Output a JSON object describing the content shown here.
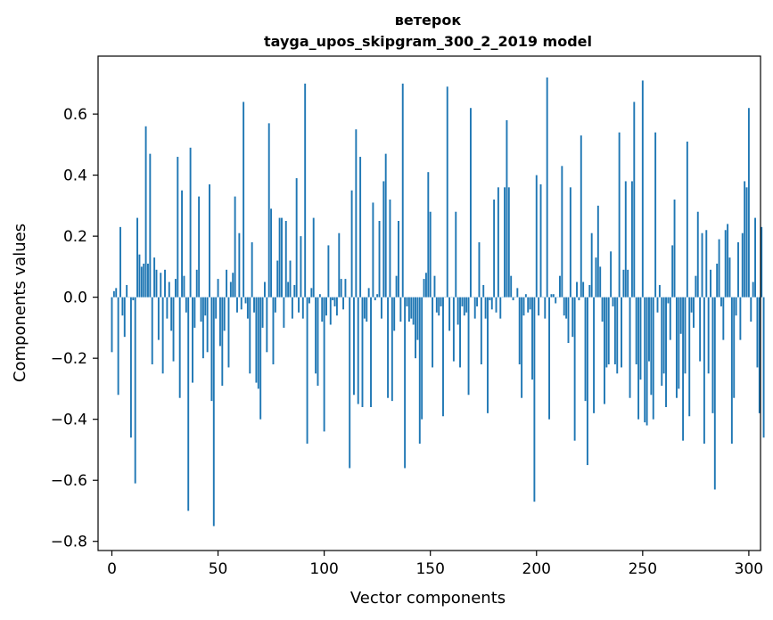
{
  "chart_data": {
    "type": "bar",
    "title": "ветерок",
    "subtitle": "tayga_upos_skipgram_300_2_2019 model",
    "xlabel": "Vector components",
    "ylabel": "Components values",
    "xlim": [
      -6.5,
      305.5
    ],
    "ylim": [
      -0.83,
      0.79
    ],
    "xticks": [
      0,
      50,
      100,
      150,
      200,
      250,
      300
    ],
    "yticks": [
      -0.8,
      -0.6,
      -0.4,
      -0.2,
      0.0,
      0.2,
      0.4,
      0.6
    ],
    "ytick_labels": [
      "−0.8",
      "−0.6",
      "−0.4",
      "−0.2",
      "0.0",
      "0.2",
      "0.4",
      "0.6"
    ],
    "bar_color": "#1f77b4",
    "grid": false,
    "values": [
      -0.18,
      0.02,
      0.03,
      -0.32,
      0.23,
      -0.06,
      -0.13,
      0.04,
      0.0,
      -0.46,
      -0.01,
      -0.61,
      0.26,
      0.14,
      0.1,
      0.11,
      0.56,
      0.11,
      0.47,
      -0.22,
      0.13,
      0.09,
      -0.14,
      0.08,
      -0.25,
      0.09,
      -0.07,
      0.05,
      -0.11,
      -0.21,
      0.06,
      0.46,
      -0.33,
      0.35,
      0.07,
      -0.05,
      -0.7,
      0.49,
      -0.28,
      -0.1,
      0.09,
      0.33,
      -0.08,
      -0.2,
      -0.06,
      -0.18,
      0.37,
      -0.34,
      -0.75,
      -0.07,
      0.06,
      -0.16,
      -0.29,
      -0.11,
      0.09,
      -0.23,
      0.05,
      0.08,
      0.33,
      -0.05,
      0.21,
      -0.04,
      0.64,
      -0.02,
      -0.07,
      -0.25,
      0.18,
      -0.05,
      -0.28,
      -0.3,
      -0.4,
      -0.1,
      0.05,
      -0.18,
      0.57,
      0.29,
      -0.22,
      -0.05,
      0.12,
      0.26,
      0.26,
      -0.1,
      0.25,
      0.05,
      0.12,
      -0.07,
      0.04,
      0.39,
      -0.05,
      0.2,
      -0.07,
      0.7,
      -0.48,
      -0.02,
      0.03,
      0.26,
      -0.25,
      -0.29,
      0.01,
      -0.08,
      -0.44,
      -0.06,
      0.17,
      -0.09,
      -0.01,
      -0.03,
      -0.06,
      0.21,
      0.06,
      -0.04,
      0.06,
      0.0,
      -0.56,
      0.35,
      -0.32,
      0.55,
      -0.35,
      0.46,
      -0.36,
      -0.07,
      -0.08,
      0.03,
      -0.36,
      0.31,
      -0.01,
      0.01,
      0.25,
      -0.07,
      0.38,
      0.47,
      -0.33,
      0.32,
      -0.34,
      -0.11,
      0.07,
      0.25,
      -0.08,
      0.7,
      -0.56,
      -0.03,
      -0.08,
      -0.07,
      -0.09,
      -0.2,
      -0.14,
      -0.48,
      -0.4,
      0.06,
      0.08,
      0.41,
      0.28,
      -0.23,
      0.07,
      -0.05,
      -0.06,
      -0.03,
      -0.39,
      0.0,
      0.69,
      -0.11,
      0.0,
      -0.21,
      0.28,
      -0.09,
      -0.23,
      -0.03,
      -0.06,
      -0.05,
      -0.32,
      0.62,
      0.0,
      -0.07,
      -0.03,
      0.18,
      -0.22,
      0.04,
      -0.07,
      -0.38,
      -0.01,
      -0.04,
      0.32,
      -0.05,
      0.36,
      -0.07,
      0.0,
      0.36,
      0.58,
      0.36,
      0.07,
      -0.01,
      0.0,
      0.03,
      -0.22,
      -0.33,
      -0.06,
      0.01,
      -0.05,
      -0.04,
      -0.27,
      -0.67,
      0.4,
      -0.06,
      0.37,
      0.0,
      -0.07,
      0.72,
      -0.4,
      0.01,
      0.01,
      -0.02,
      0.0,
      0.07,
      0.43,
      -0.06,
      -0.07,
      -0.15,
      0.36,
      -0.13,
      -0.47,
      0.05,
      -0.01,
      0.53,
      0.05,
      -0.34,
      -0.55,
      0.04,
      0.21,
      -0.38,
      0.13,
      0.3,
      0.1,
      -0.08,
      -0.35,
      -0.23,
      -0.22,
      0.15,
      -0.03,
      -0.22,
      -0.25,
      0.54,
      -0.23,
      0.09,
      0.38,
      0.09,
      -0.33,
      0.38,
      0.64,
      -0.22,
      -0.4,
      -0.27,
      0.71,
      -0.41,
      -0.42,
      -0.21,
      -0.32,
      -0.4,
      0.54,
      -0.05,
      0.04,
      -0.29,
      -0.25,
      -0.36,
      -0.02,
      -0.14,
      0.17,
      0.32,
      -0.33,
      -0.3,
      -0.12,
      -0.47,
      -0.25,
      0.51,
      -0.39,
      -0.05,
      -0.1,
      0.07,
      0.28,
      -0.21,
      0.21,
      -0.48,
      0.22,
      -0.25,
      0.09,
      -0.38,
      -0.63,
      0.11,
      0.19,
      -0.03,
      -0.14,
      0.22,
      0.24,
      0.13,
      -0.48,
      -0.33,
      -0.06,
      0.18,
      -0.14,
      0.21,
      0.38,
      0.36,
      0.62,
      -0.08,
      0.05,
      0.26,
      -0.23,
      -0.38,
      0.23,
      -0.46
    ]
  }
}
